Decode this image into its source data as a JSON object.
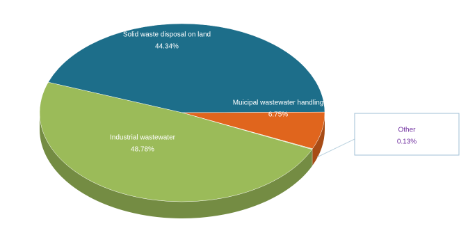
{
  "chart_data": {
    "type": "pie",
    "categories": [
      "Solid waste disposal on land",
      "Muicipal wastewater handling",
      "Other",
      "Industrial wastewater"
    ],
    "values": [
      44.34,
      6.75,
      0.13,
      48.78
    ],
    "value_labels": [
      "44.34%",
      "6.75%",
      "0.13%",
      "48.78%"
    ],
    "colors": [
      "#1d6e8a",
      "#e0651d",
      "#c5d99a",
      "#9bbb59"
    ]
  }
}
